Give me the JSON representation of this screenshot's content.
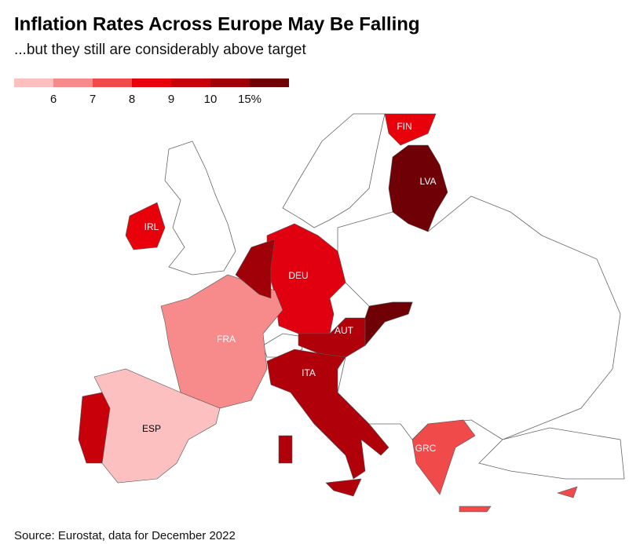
{
  "header": {
    "title": "Inflation Rates Across Europe May Be Falling",
    "subtitle": "...but they still are considerably above target"
  },
  "legend": {
    "colors": [
      "#fcc0c0",
      "#f78a8a",
      "#f04a4a",
      "#e8000b",
      "#c8000a",
      "#a00008",
      "#6e0006"
    ],
    "ticks": [
      "6",
      "7",
      "8",
      "9",
      "10",
      "15%"
    ]
  },
  "regions": [
    {
      "label": "FIN",
      "color": "#e8000b"
    },
    {
      "label": "LVA",
      "color": "#6e0006"
    },
    {
      "label": "IRL",
      "color": "#e8000b"
    },
    {
      "label": "DEU",
      "color": "#e00010"
    },
    {
      "label": "FRA",
      "color": "#f78a8a"
    },
    {
      "label": "AUT",
      "color": "#b0000a"
    },
    {
      "label": "ITA",
      "color": "#b0000a"
    },
    {
      "label": "ESP",
      "color": "#fcc0c0"
    },
    {
      "label": "GRC",
      "color": "#f04a4a"
    },
    {
      "color": "#a00008"
    },
    {
      "color": "#6e0006"
    },
    {
      "color": "#c8000a"
    }
  ],
  "source": "Source: Eurostat, data for December 2022"
}
